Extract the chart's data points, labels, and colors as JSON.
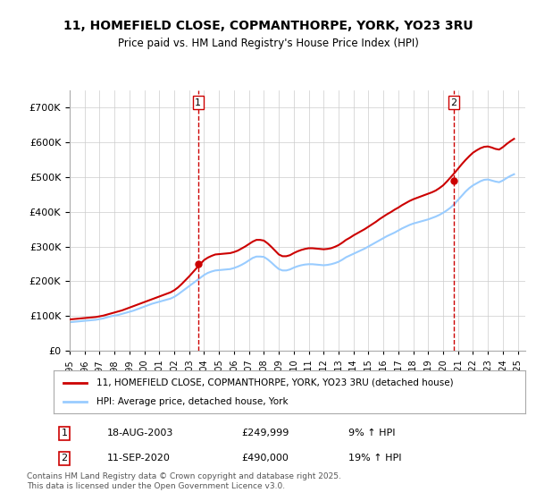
{
  "title_line1": "11, HOMEFIELD CLOSE, COPMANTHORPE, YORK, YO23 3RU",
  "title_line2": "Price paid vs. HM Land Registry's House Price Index (HPI)",
  "ylabel": "",
  "xlim_start": 1995.0,
  "xlim_end": 2025.5,
  "ylim_min": 0,
  "ylim_max": 750000,
  "yticks": [
    0,
    100000,
    200000,
    300000,
    400000,
    500000,
    600000,
    700000
  ],
  "ytick_labels": [
    "£0",
    "£100K",
    "£200K",
    "£300K",
    "£400K",
    "£500K",
    "£600K",
    "£700K"
  ],
  "xticks": [
    1995,
    1996,
    1997,
    1998,
    1999,
    2000,
    2001,
    2002,
    2003,
    2004,
    2005,
    2006,
    2007,
    2008,
    2009,
    2010,
    2011,
    2012,
    2013,
    2014,
    2015,
    2016,
    2017,
    2018,
    2019,
    2020,
    2021,
    2022,
    2023,
    2024,
    2025
  ],
  "purchase1_x": 2003.6,
  "purchase1_y": 249999,
  "purchase1_label": "1",
  "purchase2_x": 2020.7,
  "purchase2_y": 490000,
  "purchase2_label": "2",
  "line1_color": "#cc0000",
  "line2_color": "#99ccff",
  "vline_color": "#cc0000",
  "marker_color": "#cc0000",
  "grid_color": "#cccccc",
  "background_color": "#ffffff",
  "legend_line1": "11, HOMEFIELD CLOSE, COPMANTHORPE, YORK, YO23 3RU (detached house)",
  "legend_line2": "HPI: Average price, detached house, York",
  "annotation1_date": "18-AUG-2003",
  "annotation1_price": "£249,999",
  "annotation1_hpi": "9% ↑ HPI",
  "annotation2_date": "11-SEP-2020",
  "annotation2_price": "£490,000",
  "annotation2_hpi": "19% ↑ HPI",
  "footer": "Contains HM Land Registry data © Crown copyright and database right 2025.\nThis data is licensed under the Open Government Licence v3.0.",
  "hpi_data_x": [
    1995.0,
    1995.25,
    1995.5,
    1995.75,
    1996.0,
    1996.25,
    1996.5,
    1996.75,
    1997.0,
    1997.25,
    1997.5,
    1997.75,
    1998.0,
    1998.25,
    1998.5,
    1998.75,
    1999.0,
    1999.25,
    1999.5,
    1999.75,
    2000.0,
    2000.25,
    2000.5,
    2000.75,
    2001.0,
    2001.25,
    2001.5,
    2001.75,
    2002.0,
    2002.25,
    2002.5,
    2002.75,
    2003.0,
    2003.25,
    2003.5,
    2003.75,
    2004.0,
    2004.25,
    2004.5,
    2004.75,
    2005.0,
    2005.25,
    2005.5,
    2005.75,
    2006.0,
    2006.25,
    2006.5,
    2006.75,
    2007.0,
    2007.25,
    2007.5,
    2007.75,
    2008.0,
    2008.25,
    2008.5,
    2008.75,
    2009.0,
    2009.25,
    2009.5,
    2009.75,
    2010.0,
    2010.25,
    2010.5,
    2010.75,
    2011.0,
    2011.25,
    2011.5,
    2011.75,
    2012.0,
    2012.25,
    2012.5,
    2012.75,
    2013.0,
    2013.25,
    2013.5,
    2013.75,
    2014.0,
    2014.25,
    2014.5,
    2014.75,
    2015.0,
    2015.25,
    2015.5,
    2015.75,
    2016.0,
    2016.25,
    2016.5,
    2016.75,
    2017.0,
    2017.25,
    2017.5,
    2017.75,
    2018.0,
    2018.25,
    2018.5,
    2018.75,
    2019.0,
    2019.25,
    2019.5,
    2019.75,
    2020.0,
    2020.25,
    2020.5,
    2020.75,
    2021.0,
    2021.25,
    2021.5,
    2021.75,
    2022.0,
    2022.25,
    2022.5,
    2022.75,
    2023.0,
    2023.25,
    2023.5,
    2023.75,
    2024.0,
    2024.25,
    2024.5,
    2024.75
  ],
  "hpi_data_y": [
    82000,
    83000,
    84000,
    85000,
    86000,
    87000,
    88000,
    89000,
    91000,
    93000,
    96000,
    99000,
    101000,
    103000,
    106000,
    109000,
    112000,
    115000,
    119000,
    123000,
    127000,
    131000,
    135000,
    138000,
    141000,
    144000,
    147000,
    150000,
    155000,
    162000,
    170000,
    178000,
    186000,
    194000,
    202000,
    210000,
    218000,
    224000,
    228000,
    231000,
    232000,
    233000,
    234000,
    235000,
    238000,
    242000,
    247000,
    253000,
    260000,
    267000,
    271000,
    271000,
    270000,
    263000,
    254000,
    244000,
    235000,
    231000,
    231000,
    234000,
    239000,
    243000,
    246000,
    248000,
    249000,
    249000,
    248000,
    247000,
    246000,
    247000,
    249000,
    252000,
    256000,
    262000,
    269000,
    274000,
    279000,
    284000,
    289000,
    294000,
    300000,
    306000,
    312000,
    318000,
    324000,
    330000,
    335000,
    340000,
    346000,
    352000,
    357000,
    362000,
    366000,
    369000,
    372000,
    375000,
    378000,
    382000,
    386000,
    391000,
    397000,
    404000,
    412000,
    422000,
    434000,
    446000,
    458000,
    468000,
    476000,
    482000,
    488000,
    492000,
    493000,
    490000,
    487000,
    485000,
    490000,
    497000,
    503000,
    508000
  ],
  "price_data_x": [
    1995.0,
    1995.25,
    1995.5,
    1995.75,
    1996.0,
    1996.25,
    1996.5,
    1996.75,
    1997.0,
    1997.25,
    1997.5,
    1997.75,
    1998.0,
    1998.25,
    1998.5,
    1998.75,
    1999.0,
    1999.25,
    1999.5,
    1999.75,
    2000.0,
    2000.25,
    2000.5,
    2000.75,
    2001.0,
    2001.25,
    2001.5,
    2001.75,
    2002.0,
    2002.25,
    2002.5,
    2002.75,
    2003.0,
    2003.25,
    2003.5,
    2003.75,
    2004.0,
    2004.25,
    2004.5,
    2004.75,
    2005.0,
    2005.25,
    2005.5,
    2005.75,
    2006.0,
    2006.25,
    2006.5,
    2006.75,
    2007.0,
    2007.25,
    2007.5,
    2007.75,
    2008.0,
    2008.25,
    2008.5,
    2008.75,
    2009.0,
    2009.25,
    2009.5,
    2009.75,
    2010.0,
    2010.25,
    2010.5,
    2010.75,
    2011.0,
    2011.25,
    2011.5,
    2011.75,
    2012.0,
    2012.25,
    2012.5,
    2012.75,
    2013.0,
    2013.25,
    2013.5,
    2013.75,
    2014.0,
    2014.25,
    2014.5,
    2014.75,
    2015.0,
    2015.25,
    2015.5,
    2015.75,
    2016.0,
    2016.25,
    2016.5,
    2016.75,
    2017.0,
    2017.25,
    2017.5,
    2017.75,
    2018.0,
    2018.25,
    2018.5,
    2018.75,
    2019.0,
    2019.25,
    2019.5,
    2019.75,
    2020.0,
    2020.25,
    2020.5,
    2020.75,
    2021.0,
    2021.25,
    2021.5,
    2021.75,
    2022.0,
    2022.25,
    2022.5,
    2022.75,
    2023.0,
    2023.25,
    2023.5,
    2023.75,
    2024.0,
    2024.25,
    2024.5,
    2024.75
  ],
  "price_data_y": [
    90000,
    91000,
    92000,
    93000,
    94000,
    95000,
    96000,
    97000,
    99000,
    101000,
    104000,
    107000,
    110000,
    113000,
    116000,
    120000,
    124000,
    128000,
    132000,
    136000,
    140000,
    144000,
    148000,
    152000,
    156000,
    160000,
    164000,
    168000,
    174000,
    182000,
    192000,
    203000,
    214000,
    226000,
    238000,
    249999,
    261000,
    268000,
    273000,
    277000,
    278000,
    279000,
    280000,
    281000,
    284000,
    288000,
    294000,
    300000,
    307000,
    314000,
    319000,
    319000,
    317000,
    309000,
    299000,
    288000,
    277000,
    272000,
    272000,
    275000,
    281000,
    286000,
    290000,
    293000,
    295000,
    295000,
    294000,
    293000,
    292000,
    293000,
    295000,
    299000,
    304000,
    311000,
    319000,
    325000,
    332000,
    338000,
    344000,
    350000,
    357000,
    364000,
    371000,
    379000,
    386000,
    393000,
    399000,
    406000,
    412000,
    419000,
    425000,
    431000,
    436000,
    440000,
    444000,
    448000,
    452000,
    456000,
    461000,
    468000,
    476000,
    487000,
    499000,
    511000,
    524000,
    537000,
    549000,
    560000,
    570000,
    577000,
    583000,
    587000,
    588000,
    585000,
    581000,
    579000,
    586000,
    595000,
    603000,
    610000
  ]
}
